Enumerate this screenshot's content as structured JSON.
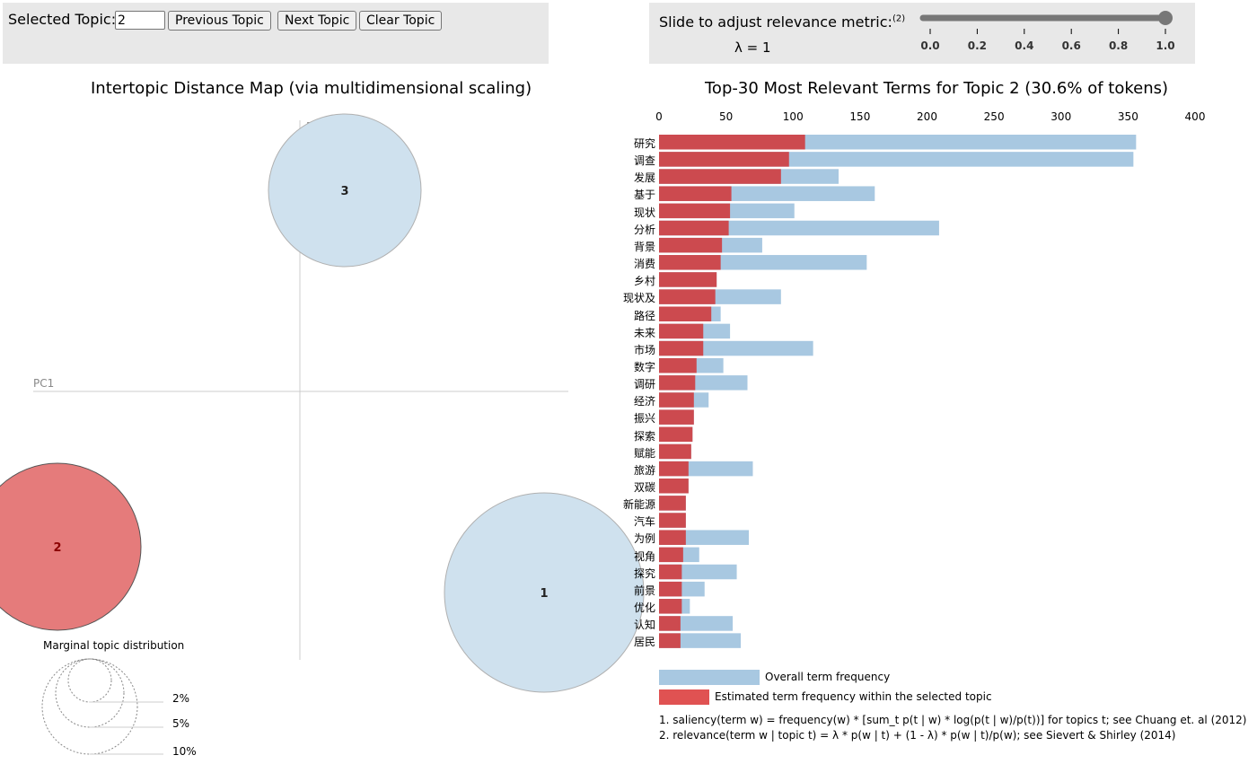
{
  "topic_panel": {
    "label": "Selected Topic:",
    "value": "2",
    "prev_label": "Previous Topic",
    "next_label": "Next Topic",
    "clear_label": "Clear Topic"
  },
  "lambda_panel": {
    "label": "Slide to adjust relevance metric:",
    "footnote": "(2)",
    "value_text": "λ = 1",
    "lambda": 1.0,
    "ticks": [
      "0.0",
      "0.2",
      "0.4",
      "0.6",
      "0.8",
      "1.0"
    ]
  },
  "map": {
    "title": "Intertopic Distance Map (via multidimensional scaling)",
    "pc1_label": "PC1",
    "pc2_label": "PC2",
    "topics": [
      {
        "id": "1",
        "selected": false
      },
      {
        "id": "2",
        "selected": true
      },
      {
        "id": "3",
        "selected": false
      }
    ],
    "marginal": {
      "title": "Marginal topic distribution",
      "labels": [
        "2%",
        "5%",
        "10%"
      ]
    },
    "colors": {
      "unselected": "#cfe1ee",
      "selected": "#e57b7b",
      "selected_text": "#8b0000"
    }
  },
  "bars": {
    "title": "Top-30 Most Relevant Terms for Topic 2 (30.6% of tokens)",
    "xticks": [
      "0",
      "50",
      "100",
      "150",
      "200",
      "250",
      "300",
      "350",
      "400"
    ],
    "terms": [
      "研究",
      "调查",
      "发展",
      "基于",
      "现状",
      "分析",
      "背景",
      "消费",
      "乡村",
      "现状及",
      "路径",
      "未来",
      "市场",
      "数字",
      "调研",
      "经济",
      "振兴",
      "探索",
      "赋能",
      "旅游",
      "双碳",
      "新能源",
      "汽车",
      "为例",
      "视角",
      "探究",
      "前景",
      "优化",
      "认知",
      "居民"
    ],
    "legend_overall": "Overall term frequency",
    "legend_topic": "Estimated term frequency within the selected topic",
    "colors": {
      "overall": "#a8c8e1",
      "topic": "#cc4a4f"
    }
  },
  "chart_data": {
    "type": "bar",
    "title": "Top-30 Most Relevant Terms for Topic 2 (30.6% of tokens)",
    "categories": [
      "研究",
      "调查",
      "发展",
      "基于",
      "现状",
      "分析",
      "背景",
      "消费",
      "乡村",
      "现状及",
      "路径",
      "未来",
      "市场",
      "数字",
      "调研",
      "经济",
      "振兴",
      "探索",
      "赋能",
      "旅游",
      "双碳",
      "新能源",
      "汽车",
      "为例",
      "视角",
      "探究",
      "前景",
      "优化",
      "认知",
      "居民"
    ],
    "series": [
      {
        "name": "Overall term frequency",
        "values": [
          356,
          354,
          134,
          161,
          101,
          209,
          77,
          155,
          43,
          91,
          46,
          53,
          115,
          48,
          66,
          37,
          26,
          25,
          24,
          70,
          22,
          20,
          20,
          67,
          30,
          58,
          34,
          23,
          55,
          61
        ]
      },
      {
        "name": "Estimated term frequency within the selected topic",
        "values": [
          109,
          97,
          91,
          54,
          53,
          52,
          47,
          46,
          43,
          42,
          39,
          33,
          33,
          28,
          27,
          26,
          26,
          25,
          24,
          22,
          22,
          20,
          20,
          20,
          18,
          17,
          17,
          17,
          16,
          16
        ]
      }
    ],
    "xlim": [
      0,
      400
    ]
  },
  "notes": {
    "note1": "1. saliency(term w) = frequency(w) * [sum_t p(t | w) * log(p(t | w)/p(t))] for topics t; see Chuang et. al (2012)",
    "note2": "2. relevance(term w | topic t) = λ * p(w | t) + (1 - λ) * p(w | t)/p(w); see Sievert & Shirley (2014)"
  }
}
